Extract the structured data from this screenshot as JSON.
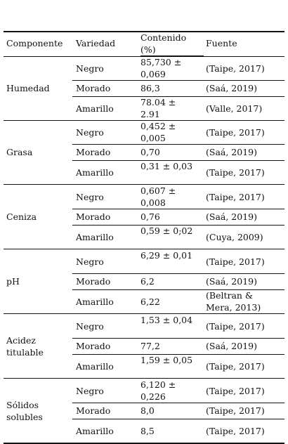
{
  "table": {
    "headers": {
      "componente": "Componente",
      "variedad": "Variedad",
      "contenido": "Contenido (%)",
      "fuente": "Fuente"
    },
    "groups": [
      {
        "componente": "Humedad",
        "rows": [
          {
            "variedad": "Negro",
            "contenido": "85,730 ± 0,069",
            "fuente": "(Taipe, 2017)"
          },
          {
            "variedad": "Morado",
            "contenido": "86,3",
            "fuente": "(Saá, 2019)"
          },
          {
            "variedad": "Amarillo",
            "contenido": "78.04 ± 2.91",
            "fuente": "(Valle, 2017)"
          }
        ]
      },
      {
        "componente": "Grasa",
        "rows": [
          {
            "variedad": "Negro",
            "contenido": "0,452 ± 0,005",
            "fuente": "(Taipe, 2017)"
          },
          {
            "variedad": "Morado",
            "contenido": "0,70",
            "fuente": "(Saá, 2019)"
          },
          {
            "variedad": "Amarillo",
            "contenido": "0,31 ± 0,03",
            "fuente": "(Taipe, 2017)"
          }
        ]
      },
      {
        "componente": "Ceniza",
        "rows": [
          {
            "variedad": "Negro",
            "contenido": "0,607 ± 0,008",
            "fuente": "(Taipe, 2017)"
          },
          {
            "variedad": "Morado",
            "contenido": "0,76",
            "fuente": "(Saá, 2019)"
          },
          {
            "variedad": "Amarillo",
            "contenido": "0,59 ± 0;02",
            "fuente": "(Cuya, 2009)"
          }
        ]
      },
      {
        "componente": "pH",
        "rows": [
          {
            "variedad": "Negro",
            "contenido": "6,29 ± 0,01",
            "fuente": "(Taipe, 2017)"
          },
          {
            "variedad": "Morado",
            "contenido": "6,2",
            "fuente": "(Saá, 2019)"
          },
          {
            "variedad": "Amarillo",
            "contenido": "6,22",
            "fuente": "(Beltran & Mera, 2013)"
          }
        ]
      },
      {
        "componente": "Acidez titulable",
        "rows": [
          {
            "variedad": "Negro",
            "contenido": "1,53 ± 0,04",
            "fuente": "(Taipe, 2017)"
          },
          {
            "variedad": "Morado",
            "contenido": "77,2",
            "fuente": "(Saá, 2019)"
          },
          {
            "variedad": "Amarillo",
            "contenido": "1,59 ± 0,05",
            "fuente": "(Taipe, 2017)"
          }
        ]
      },
      {
        "componente": "Sólidos solubles",
        "rows": [
          {
            "variedad": "Negro",
            "contenido": "6,120 ± 0,226",
            "fuente": "(Taipe, 2017)"
          },
          {
            "variedad": "Morado",
            "contenido": "8,0",
            "fuente": "(Taipe, 2017)"
          },
          {
            "variedad": "Amarillo",
            "contenido": "8,5",
            "fuente": "(Taipe, 2017)"
          }
        ]
      }
    ]
  }
}
